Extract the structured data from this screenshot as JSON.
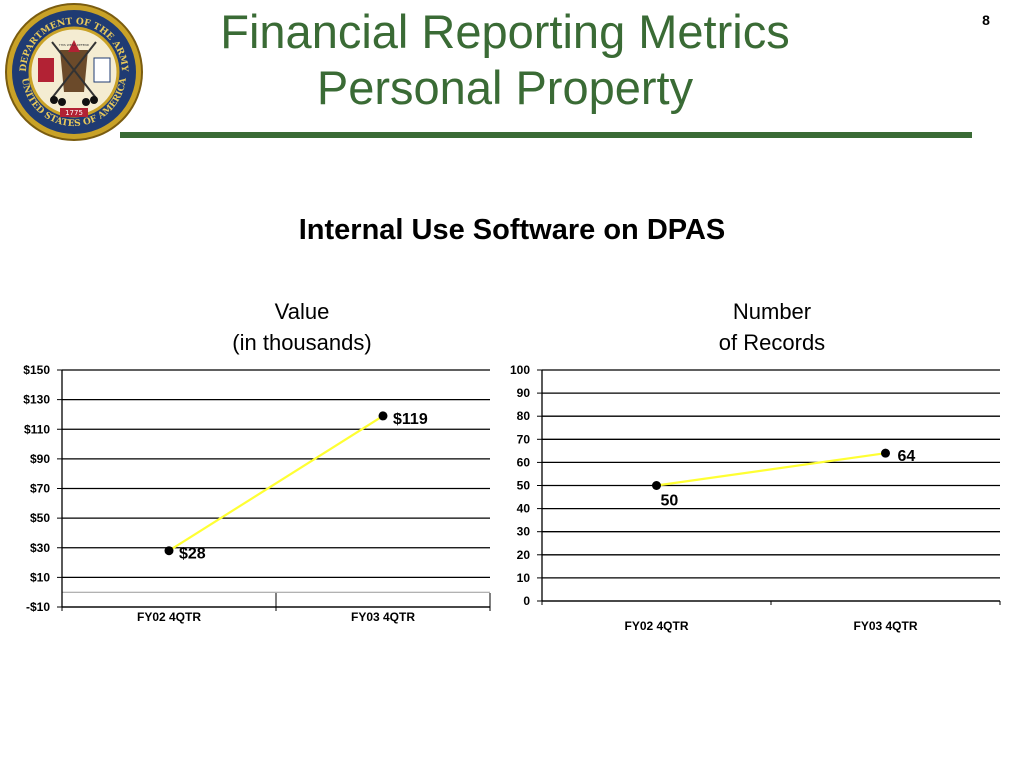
{
  "slide": {
    "title_line1": "Financial Reporting Metrics",
    "title_line2": "Personal Property",
    "page_number": "8",
    "subtitle": "Internal Use Software on DPAS",
    "seal": {
      "top_text": "DEPARTMENT OF THE ARMY",
      "bottom_text": "UNITED STATES OF AMERICA",
      "year": "1775",
      "motto": "THIS WE'LL DEFEND"
    }
  },
  "colors": {
    "title": "#3a6b35",
    "rule": "#3a6b35",
    "line": "#ffff33",
    "marker": "#000000",
    "grid": "#000000"
  },
  "chart_data": [
    {
      "type": "line",
      "heading_line1": "Value",
      "heading_line2": "(in thousands)",
      "categories": [
        "FY02 4QTR",
        "FY03 4QTR"
      ],
      "values": [
        28,
        119
      ],
      "value_labels": [
        "$28",
        "$119"
      ],
      "yticks": [
        "$150",
        "$130",
        "$110",
        "$90",
        "$70",
        "$50",
        "$30",
        "$10",
        "-$10"
      ],
      "ylim": [
        -10,
        150
      ],
      "grid": true
    },
    {
      "type": "line",
      "heading_line1": "Number",
      "heading_line2": "of Records",
      "categories": [
        "FY02 4QTR",
        "FY03 4QTR"
      ],
      "values": [
        50,
        64
      ],
      "value_labels": [
        "50",
        "64"
      ],
      "yticks": [
        "100",
        "90",
        "80",
        "70",
        "60",
        "50",
        "40",
        "30",
        "20",
        "10",
        "0"
      ],
      "ylim": [
        0,
        100
      ],
      "grid": true
    }
  ]
}
